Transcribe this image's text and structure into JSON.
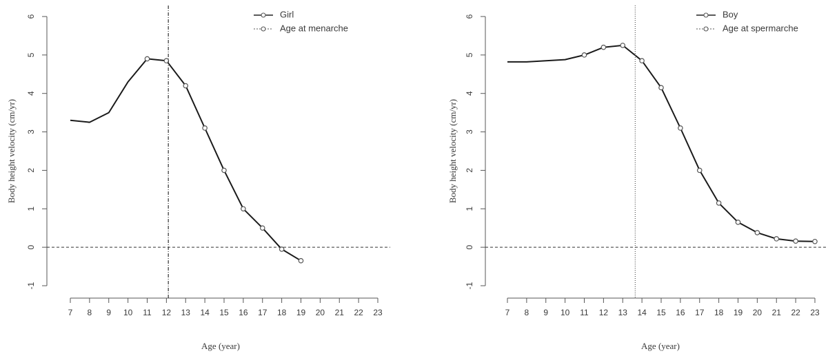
{
  "chart_data": [
    {
      "type": "line",
      "xlabel": "Age (year)",
      "ylabel": "Body height velocity (cm/yr)",
      "xlim": [
        7,
        23
      ],
      "ylim": [
        -1,
        6
      ],
      "x_ticks": [
        7,
        8,
        9,
        10,
        11,
        12,
        13,
        14,
        15,
        16,
        17,
        18,
        19,
        20,
        21,
        22,
        23
      ],
      "y_ticks": [
        -1,
        0,
        1,
        2,
        3,
        4,
        5,
        6
      ],
      "x_tick_labels": [
        "7",
        "8",
        "9",
        "10",
        "11",
        "12",
        "13",
        "14",
        "15",
        "16",
        "17",
        "18",
        "19",
        "20",
        "21",
        "22",
        "23"
      ],
      "y_tick_labels": [
        "-1",
        "0",
        "1",
        "2",
        "3",
        "4",
        "5",
        "6"
      ],
      "grid": false,
      "legend_position": "top-right",
      "reference_hline": 0,
      "series": [
        {
          "name": "Girl",
          "x": [
            7,
            8,
            9,
            10,
            11,
            12,
            13,
            14,
            15,
            16,
            17,
            18,
            19
          ],
          "y": [
            3.3,
            3.25,
            3.5,
            4.3,
            4.9,
            4.85,
            4.2,
            3.1,
            2.0,
            1.0,
            0.5,
            -0.05,
            -0.35
          ],
          "markers_x": [
            11,
            12,
            13,
            14,
            15,
            16,
            17,
            18,
            19
          ],
          "color": "#1a1a1a"
        },
        {
          "name": "Age at menarche",
          "type": "vline",
          "x": 12.1,
          "color": "#333333"
        }
      ]
    },
    {
      "type": "line",
      "xlabel": "Age (year)",
      "ylabel": "Body height velocity (cm/yr)",
      "xlim": [
        7,
        23
      ],
      "ylim": [
        -1,
        6
      ],
      "x_ticks": [
        7,
        8,
        9,
        10,
        11,
        12,
        13,
        14,
        15,
        16,
        17,
        18,
        19,
        20,
        21,
        22,
        23
      ],
      "y_ticks": [
        -1,
        0,
        1,
        2,
        3,
        4,
        5,
        6
      ],
      "x_tick_labels": [
        "7",
        "8",
        "9",
        "10",
        "11",
        "12",
        "13",
        "14",
        "15",
        "16",
        "17",
        "18",
        "19",
        "20",
        "21",
        "22",
        "23"
      ],
      "y_tick_labels": [
        "-1",
        "0",
        "1",
        "2",
        "3",
        "4",
        "5",
        "6"
      ],
      "grid": false,
      "legend_position": "top-right",
      "reference_hline": 0,
      "series": [
        {
          "name": "Boy",
          "x": [
            7,
            8,
            9,
            10,
            11,
            12,
            13,
            14,
            15,
            16,
            17,
            18,
            19,
            20,
            21,
            22,
            23
          ],
          "y": [
            4.82,
            4.82,
            4.85,
            4.88,
            5.0,
            5.2,
            5.25,
            4.85,
            4.15,
            3.1,
            2.0,
            1.15,
            0.65,
            0.38,
            0.22,
            0.16,
            0.15
          ],
          "markers_x": [
            11,
            12,
            13,
            14,
            15,
            16,
            17,
            18,
            19,
            20,
            21,
            22,
            23
          ],
          "color": "#1a1a1a"
        },
        {
          "name": "Age at spermarche",
          "type": "vline",
          "x": 13.65,
          "color": "#555555"
        }
      ]
    }
  ]
}
